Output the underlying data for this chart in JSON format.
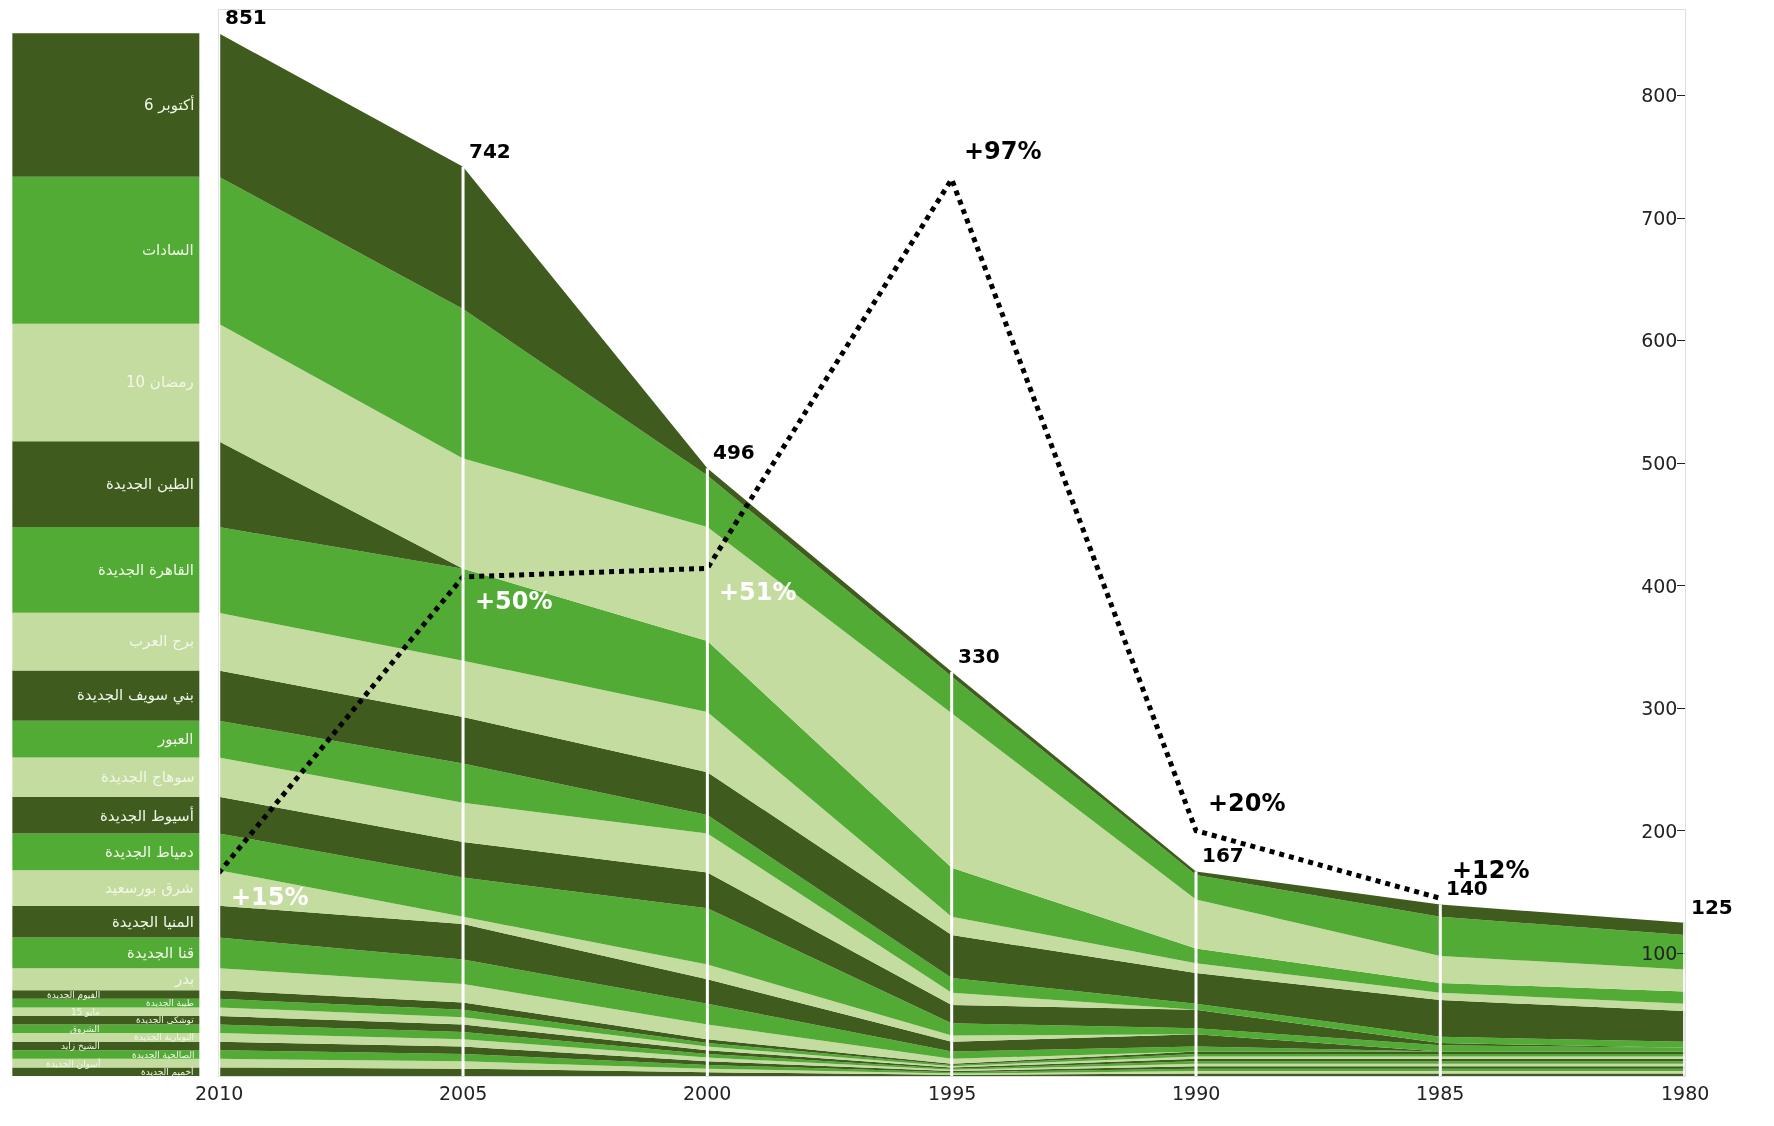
{
  "chart_data": {
    "type": "area",
    "stacked": true,
    "legend": "left",
    "grid": "x",
    "x": [
      2010,
      2005,
      2000,
      1995,
      1990,
      1985,
      1980
    ],
    "xlim": [
      2010,
      1980
    ],
    "xticks": [
      2010,
      2005,
      2000,
      1995,
      1990,
      1985,
      1980
    ],
    "ylim": [
      0,
      870
    ],
    "yticks": [
      100,
      200,
      300,
      400,
      500,
      600,
      700,
      800
    ],
    "y2lim": [
      -9,
      117
    ],
    "totals": [
      "851",
      "742",
      "496",
      "330",
      "167",
      "140",
      "125"
    ],
    "series": [
      {
        "name": "أخميم الجديدة",
        "color": "#3f5c1e",
        "values": [
          7,
          6,
          3,
          1,
          2,
          2,
          2
        ]
      },
      {
        "name": "أسوان الجديدة",
        "color": "#c5dca0",
        "values": [
          7,
          6,
          3,
          1,
          2,
          2,
          2
        ]
      },
      {
        "name": "الصالحية الجديدة",
        "color": "#52ab34",
        "values": [
          7,
          6,
          3,
          1,
          2,
          2,
          2
        ]
      },
      {
        "name": "الشيخ زايد",
        "color": "#3f5c1e",
        "values": [
          7,
          6,
          3,
          1,
          2,
          2,
          2
        ]
      },
      {
        "name": "النوبارية الجديدة",
        "color": "#c5dca0",
        "values": [
          7,
          6,
          3,
          1,
          2,
          2,
          2
        ]
      },
      {
        "name": "الشروق",
        "color": "#52ab34",
        "values": [
          7,
          6,
          3,
          1,
          2,
          2,
          2
        ]
      },
      {
        "name": "توشكى الجديدة",
        "color": "#3f5c1e",
        "values": [
          7,
          6,
          3,
          1,
          2,
          2,
          2
        ]
      },
      {
        "name": "15 مايو",
        "color": "#c5dca0",
        "values": [
          7,
          6,
          3,
          1,
          2,
          2,
          2
        ]
      },
      {
        "name": "طيبة الجديدة",
        "color": "#52ab34",
        "values": [
          7,
          6,
          3,
          1,
          2,
          2,
          2
        ]
      },
      {
        "name": "الفيوم الجديدة",
        "color": "#3f5c1e",
        "values": [
          7,
          6,
          3,
          1,
          2,
          2,
          2
        ]
      },
      {
        "name": "بدر",
        "color": "#c5dca0",
        "values": [
          18,
          15,
          12,
          4,
          0,
          0,
          0
        ]
      },
      {
        "name": "قنا الجديدة",
        "color": "#52ab34",
        "values": [
          25,
          20,
          17,
          6,
          4,
          0,
          0
        ]
      },
      {
        "name": "المنيا الجديدة",
        "color": "#3f5c1e",
        "values": [
          26,
          29,
          20,
          8,
          10,
          0,
          0
        ]
      },
      {
        "name": "شرق بورسعيد",
        "color": "#c5dca0",
        "values": [
          29,
          6,
          12,
          5,
          0,
          0,
          0
        ]
      },
      {
        "name": "دمياط الجديدة",
        "color": "#52ab34",
        "values": [
          30,
          32,
          46,
          10,
          5,
          5,
          3
        ]
      },
      {
        "name": "أسيوط الجديدة",
        "color": "#3f5c1e",
        "values": [
          30,
          29,
          29,
          15,
          15,
          2,
          0
        ]
      },
      {
        "name": "سوهاج الجديدة",
        "color": "#c5dca0",
        "values": [
          32,
          32,
          32,
          10,
          0,
          0,
          0
        ]
      },
      {
        "name": "العبور",
        "color": "#52ab34",
        "values": [
          30,
          32,
          15,
          12,
          5,
          5,
          5
        ]
      },
      {
        "name": "بني سويف الجديدة",
        "color": "#3f5c1e",
        "values": [
          41,
          38,
          35,
          35,
          25,
          30,
          25
        ]
      },
      {
        "name": "برج العرب",
        "color": "#c5dca0",
        "values": [
          47,
          46,
          49,
          15,
          8,
          6,
          6
        ]
      },
      {
        "name": "القاهرة الجديدة",
        "color": "#52ab34",
        "values": [
          70,
          75,
          58,
          40,
          12,
          8,
          10
        ]
      },
      {
        "name": "الطين الجديدة",
        "color": "#3f5c1e",
        "values": [
          70,
          0,
          0,
          0,
          0,
          0,
          0
        ]
      },
      {
        "name": "10 رمضان",
        "color": "#c5dca0",
        "values": [
          96,
          90,
          93,
          126,
          40,
          22,
          18
        ]
      },
      {
        "name": "السادات",
        "color": "#52ab34",
        "values": [
          120,
          122,
          42,
          30,
          20,
          32,
          28
        ]
      },
      {
        "name": "6 أكتوبر",
        "color": "#3f5c1e",
        "values": [
          117,
          116,
          6,
          4,
          3,
          10,
          10
        ]
      },
      {
        "type": "line",
        "axis": "y2",
        "color": "#000000",
        "line_style": "dotted",
        "marker": "none",
        "values": [
          15,
          50,
          51,
          97,
          20,
          12,
          null
        ],
        "value_labels": [
          "+15%",
          "+50%",
          "+51%",
          "+97%",
          "+20%",
          "+12%",
          null
        ]
      }
    ]
  }
}
